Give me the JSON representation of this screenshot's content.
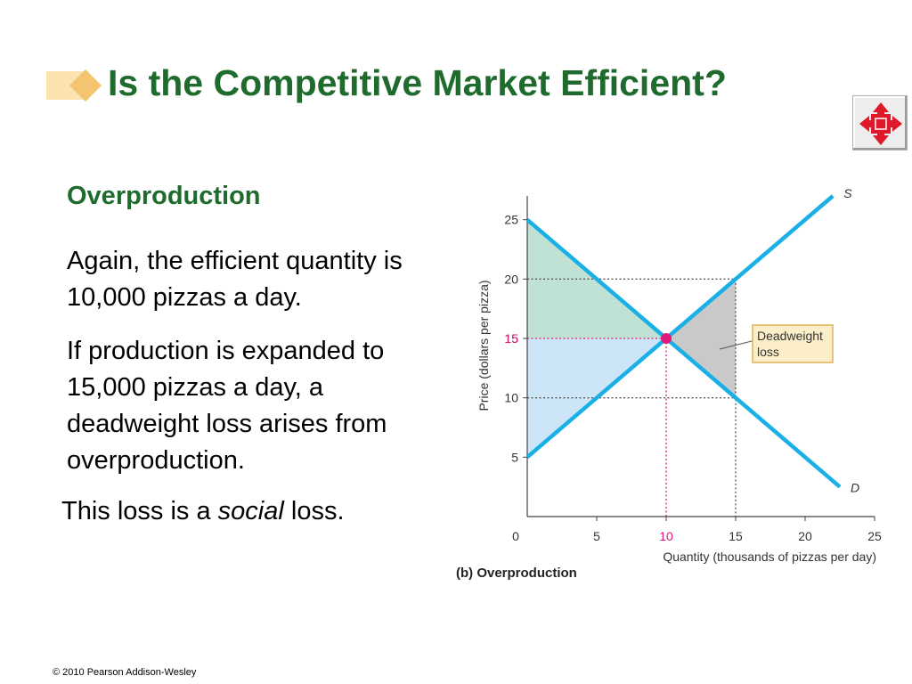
{
  "slide": {
    "title": "Is the Competitive Market Efficient?",
    "subheading": "Overproduction",
    "paragraph_1": "Again, the efficient quantity is 10,000 pizzas a day.",
    "paragraph_2": "If production is expanded to 15,000 pizzas a day, a deadweight loss arises from overproduction.",
    "paragraph_3_before": "This loss is a ",
    "paragraph_3_emphasis": "social",
    "paragraph_3_after": " loss.",
    "footer": "© 2010 Pearson Addison-Wesley",
    "nav_icon": "four-way-arrows-icon"
  },
  "colors": {
    "title_green": "#1f6b2e",
    "curve_blue": "#1ab0e6",
    "consumer_surplus": "#bfe2d4",
    "producer_surplus": "#cce6f7",
    "deadweight_loss": "#c9c9c9",
    "equilibrium_magenta": "#e0197a",
    "nav_red": "#e0192a"
  },
  "chart_data": {
    "type": "line",
    "caption": "(b) Overproduction",
    "xlabel": "Quantity (thousands of pizzas per day)",
    "ylabel": "Price (dollars per pizza)",
    "xlim": [
      0,
      25
    ],
    "ylim": [
      0,
      27
    ],
    "x_ticks": [
      0,
      5,
      10,
      15,
      20,
      25
    ],
    "y_ticks": [
      5,
      10,
      15,
      20,
      25
    ],
    "series": [
      {
        "name": "S",
        "points": [
          [
            0,
            5
          ],
          [
            22,
            27
          ]
        ]
      },
      {
        "name": "D",
        "points": [
          [
            0,
            25
          ],
          [
            22.5,
            2.5
          ]
        ]
      }
    ],
    "equilibrium": {
      "x": 10,
      "y": 15,
      "label": "15",
      "x_label": "10"
    },
    "overproduction_quantity": 15,
    "price_at_overproduction": {
      "supply": 20,
      "demand": 10
    },
    "regions": [
      {
        "id": "consumer-surplus",
        "polygon": [
          [
            0,
            25
          ],
          [
            10,
            15
          ],
          [
            0,
            15
          ]
        ]
      },
      {
        "id": "producer-surplus",
        "polygon": [
          [
            0,
            15
          ],
          [
            10,
            15
          ],
          [
            0,
            5
          ]
        ]
      },
      {
        "id": "deadweight-loss",
        "polygon": [
          [
            10,
            15
          ],
          [
            15,
            20
          ],
          [
            15,
            10
          ]
        ]
      }
    ],
    "annotation": "Deadweight loss"
  }
}
